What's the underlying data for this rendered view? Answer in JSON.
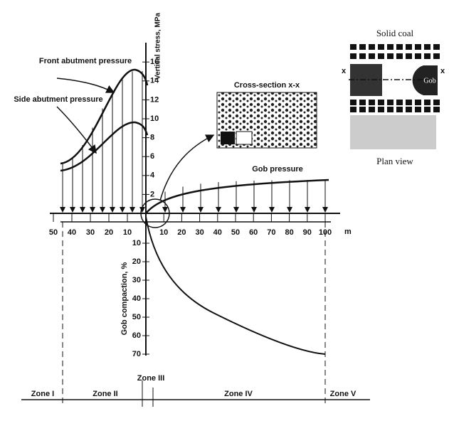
{
  "labels": {
    "stress_axis": "Vertical stress, MPa",
    "front": "Front abutment pressure",
    "side": "Side abutment pressure",
    "cross_section": "Cross-section x-x",
    "gob_pressure": "Gob pressure",
    "solid_coal": "Solid coal",
    "gob": "Gob",
    "plan_view": "Plan view",
    "x_left": "x",
    "x_right": "x",
    "unit": "m",
    "compaction_axis": "Gob compaction, %"
  },
  "stress_ticks": [
    2,
    4,
    6,
    8,
    10,
    12,
    14,
    16
  ],
  "left_distance_ticks": [
    50,
    40,
    30,
    20,
    10
  ],
  "right_distance_ticks": [
    10,
    20,
    30,
    40,
    50,
    60,
    70,
    80,
    90,
    100
  ],
  "compaction_ticks": [
    10,
    20,
    30,
    40,
    50,
    60,
    70
  ],
  "zones": [
    "Zone I",
    "Zone II",
    "Zone III",
    "Zone IV",
    "Zone V"
  ]
}
